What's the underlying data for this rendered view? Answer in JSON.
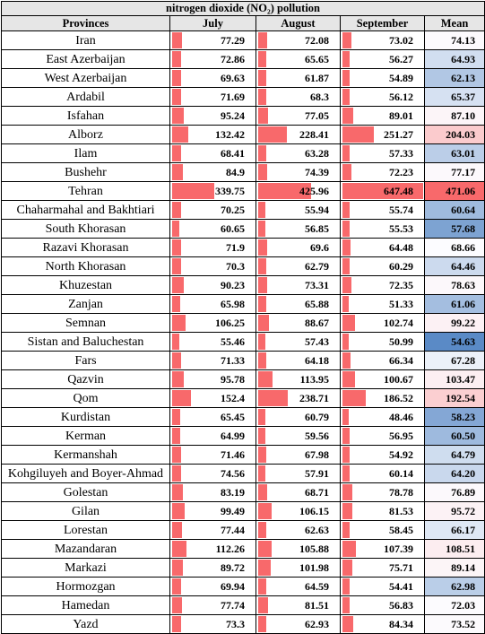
{
  "table": {
    "title": "nitrogen dioxide (NO₂) pollution",
    "headers": [
      "Provinces",
      "July",
      "August",
      "September",
      "Mean"
    ],
    "bar_max": 647.48,
    "mean_colors": {
      "low": "#5a8ac6",
      "mid": "#fcfcff",
      "high": "#f8696b"
    },
    "rows": [
      {
        "province": "Iran",
        "july": "77.29",
        "august": "72.08",
        "september": "73.02",
        "mean": "74.13"
      },
      {
        "province": "East Azerbaijan",
        "july": "72.86",
        "august": "65.65",
        "september": "56.27",
        "mean": "64.93"
      },
      {
        "province": "West Azerbaijan",
        "july": "69.63",
        "august": "61.87",
        "september": "54.89",
        "mean": "62.13"
      },
      {
        "province": "Ardabil",
        "july": "71.69",
        "august": "68.3",
        "september": "56.12",
        "mean": "65.37"
      },
      {
        "province": "Isfahan",
        "july": "95.24",
        "august": "77.05",
        "september": "89.01",
        "mean": "87.10"
      },
      {
        "province": "Alborz",
        "july": "132.42",
        "august": "228.41",
        "september": "251.27",
        "mean": "204.03"
      },
      {
        "province": "Ilam",
        "july": "68.41",
        "august": "63.28",
        "september": "57.33",
        "mean": "63.01"
      },
      {
        "province": "Bushehr",
        "july": "84.9",
        "august": "74.39",
        "september": "72.23",
        "mean": "77.17"
      },
      {
        "province": "Tehran",
        "july": "339.75",
        "august": "425.96",
        "september": "647.48",
        "mean": "471.06"
      },
      {
        "province": "Chaharmahal and Bakhtiari",
        "july": "70.25",
        "august": "55.94",
        "september": "55.74",
        "mean": "60.64"
      },
      {
        "province": "South Khorasan",
        "july": "60.65",
        "august": "56.85",
        "september": "55.53",
        "mean": "57.68"
      },
      {
        "province": "Razavi Khorasan",
        "july": "71.9",
        "august": "69.6",
        "september": "64.48",
        "mean": "68.66"
      },
      {
        "province": "North Khorasan",
        "july": "70.3",
        "august": "62.79",
        "september": "60.29",
        "mean": "64.46"
      },
      {
        "province": "Khuzestan",
        "july": "90.23",
        "august": "73.31",
        "september": "72.35",
        "mean": "78.63"
      },
      {
        "province": "Zanjan",
        "july": "65.98",
        "august": "65.88",
        "september": "51.33",
        "mean": "61.06"
      },
      {
        "province": "Semnan",
        "july": "106.25",
        "august": "88.67",
        "september": "102.74",
        "mean": "99.22"
      },
      {
        "province": "Sistan and Baluchestan",
        "july": "55.46",
        "august": "57.43",
        "september": "50.99",
        "mean": "54.63"
      },
      {
        "province": "Fars",
        "july": "71.33",
        "august": "64.18",
        "september": "66.34",
        "mean": "67.28"
      },
      {
        "province": "Qazvin",
        "july": "95.78",
        "august": "113.95",
        "september": "100.67",
        "mean": "103.47"
      },
      {
        "province": "Qom",
        "july": "152.4",
        "august": "238.71",
        "september": "186.52",
        "mean": "192.54"
      },
      {
        "province": "Kurdistan",
        "july": "65.45",
        "august": "60.79",
        "september": "48.46",
        "mean": "58.23"
      },
      {
        "province": "Kerman",
        "july": "64.99",
        "august": "59.56",
        "september": "56.95",
        "mean": "60.50"
      },
      {
        "province": "Kermanshah",
        "july": "71.46",
        "august": "67.98",
        "september": "54.92",
        "mean": "64.79"
      },
      {
        "province": "Kohgiluyeh and Boyer-Ahmad",
        "july": "74.56",
        "august": "57.91",
        "september": "60.14",
        "mean": "64.20"
      },
      {
        "province": "Golestan",
        "july": "83.19",
        "august": "68.71",
        "september": "78.78",
        "mean": "76.89"
      },
      {
        "province": "Gilan",
        "july": "99.49",
        "august": "106.15",
        "september": "81.53",
        "mean": "95.72"
      },
      {
        "province": "Lorestan",
        "july": "77.44",
        "august": "62.63",
        "september": "58.45",
        "mean": "66.17"
      },
      {
        "province": "Mazandaran",
        "july": "112.26",
        "august": "105.88",
        "september": "107.39",
        "mean": "108.51"
      },
      {
        "province": "Markazi",
        "july": "89.72",
        "august": "101.98",
        "september": "75.71",
        "mean": "89.14"
      },
      {
        "province": "Hormozgan",
        "july": "69.94",
        "august": "64.59",
        "september": "54.41",
        "mean": "62.98"
      },
      {
        "province": "Hamedan",
        "july": "77.74",
        "august": "81.51",
        "september": "56.83",
        "mean": "72.03"
      },
      {
        "province": "Yazd",
        "july": "73.3",
        "august": "62.93",
        "september": "84.34",
        "mean": "73.52"
      }
    ]
  }
}
